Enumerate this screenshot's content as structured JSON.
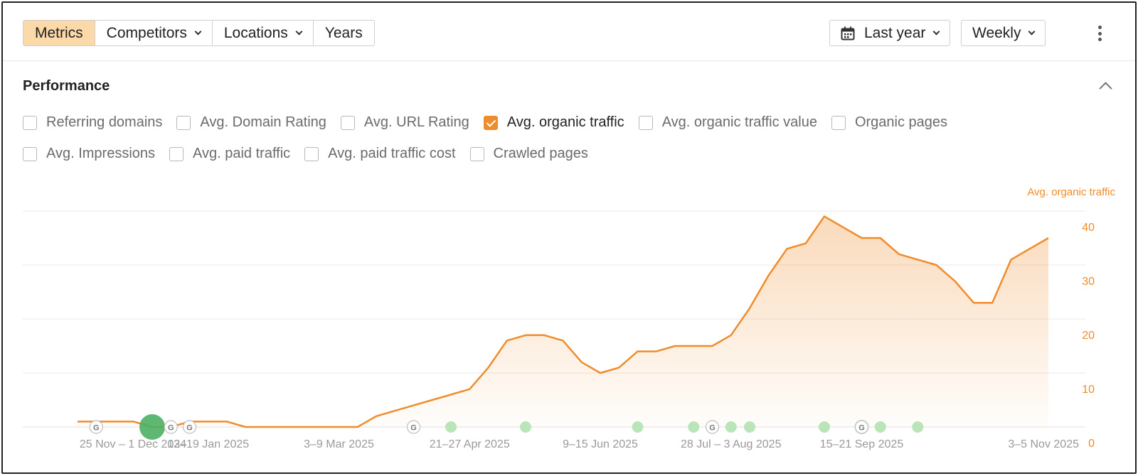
{
  "toolbar": {
    "tabs": [
      {
        "label": "Metrics",
        "active": true,
        "dropdown": false
      },
      {
        "label": "Competitors",
        "active": false,
        "dropdown": true
      },
      {
        "label": "Locations",
        "active": false,
        "dropdown": true
      },
      {
        "label": "Years",
        "active": false,
        "dropdown": false
      }
    ],
    "date_range": "Last year",
    "granularity": "Weekly"
  },
  "performance": {
    "title": "Performance",
    "metrics_row1": [
      {
        "label": "Referring domains",
        "checked": false
      },
      {
        "label": "Avg. Domain Rating",
        "checked": false
      },
      {
        "label": "Avg. URL Rating",
        "checked": false
      },
      {
        "label": "Avg. organic traffic",
        "checked": true
      },
      {
        "label": "Avg. organic traffic value",
        "checked": false
      },
      {
        "label": "Organic pages",
        "checked": false
      }
    ],
    "metrics_row2": [
      {
        "label": "Avg. Impressions",
        "checked": false
      },
      {
        "label": "Avg. paid traffic",
        "checked": false
      },
      {
        "label": "Avg. paid traffic cost",
        "checked": false
      },
      {
        "label": "Crawled pages",
        "checked": false
      }
    ]
  },
  "colors": {
    "accent": "#ef8c2b",
    "active_tab": "#fbd9a8",
    "marker_green": "#b9e5b9",
    "marker_green_large": "#4caf63"
  },
  "chart_data": {
    "type": "area",
    "series": [
      {
        "name": "Avg. organic traffic",
        "values": [
          1,
          1,
          1,
          1,
          0,
          0,
          1,
          1,
          1,
          0,
          0,
          0,
          0,
          0,
          0,
          0,
          2,
          3,
          4,
          5,
          6,
          7,
          11,
          16,
          17,
          17,
          16,
          12,
          10,
          11,
          14,
          14,
          15,
          15,
          15,
          17,
          22,
          28,
          33,
          34,
          39,
          37,
          35,
          35,
          32,
          31,
          30,
          27,
          23,
          23,
          31,
          33,
          35
        ]
      }
    ],
    "x_tick_labels": [
      "25 Nov – 1 Dec 2024",
      "13–19 Jan 2025",
      "3–9 Mar 2025",
      "21–27 Apr 2025",
      "9–15 Jun 2025",
      "28 Jul – 3 Aug 2025",
      "15–21 Sep 2025",
      "3–5 Nov 2025"
    ],
    "x_tick_week_index": [
      0,
      7,
      14,
      21,
      28,
      35,
      42,
      52
    ],
    "y_ticks": [
      0,
      10,
      20,
      30,
      40
    ],
    "ylim": [
      0,
      40
    ],
    "y_axis_title": "Avg. organic traffic",
    "y_axis_side": "right",
    "grid": true,
    "markers": [
      {
        "week": 1,
        "kind": "google"
      },
      {
        "week": 4,
        "kind": "green-large"
      },
      {
        "week": 5,
        "kind": "google"
      },
      {
        "week": 6,
        "kind": "google"
      },
      {
        "week": 18,
        "kind": "google"
      },
      {
        "week": 20,
        "kind": "green"
      },
      {
        "week": 24,
        "kind": "green"
      },
      {
        "week": 30,
        "kind": "green"
      },
      {
        "week": 33,
        "kind": "green"
      },
      {
        "week": 34,
        "kind": "google"
      },
      {
        "week": 35,
        "kind": "green"
      },
      {
        "week": 36,
        "kind": "green"
      },
      {
        "week": 40,
        "kind": "green"
      },
      {
        "week": 42,
        "kind": "green-google"
      },
      {
        "week": 43,
        "kind": "green"
      },
      {
        "week": 45,
        "kind": "green"
      }
    ]
  }
}
